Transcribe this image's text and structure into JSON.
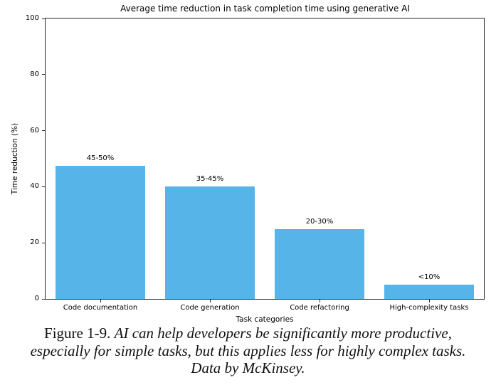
{
  "figure": {
    "caption": {
      "label": "Figure 1-9.",
      "text": "AI can help developers be significantly more productive, especially for simple tasks, but this applies less for highly complex tasks. Data by McKinsey."
    }
  },
  "chart_data": {
    "type": "bar",
    "title": "Average time reduction in task completion time using generative AI",
    "xlabel": "Task categories",
    "ylabel": "Time reduction (%)",
    "categories": [
      "Code documentation",
      "Code generation",
      "Code refactoring",
      "High-complexity tasks"
    ],
    "values": [
      47.5,
      40,
      25,
      5
    ],
    "bar_labels": [
      "45-50%",
      "35-45%",
      "20-30%",
      "<10%"
    ],
    "ylim": [
      0,
      100
    ],
    "yticks": [
      0,
      20,
      40,
      60,
      80,
      100
    ],
    "bar_color": "#56b4e9",
    "axis_color": "#262626",
    "grid": false,
    "legend": "none"
  }
}
